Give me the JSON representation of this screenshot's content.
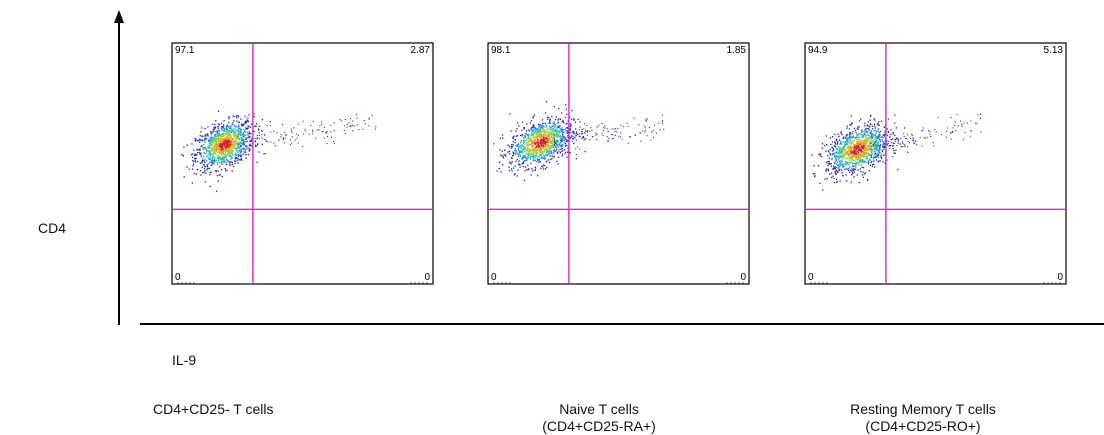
{
  "y_axis_label": "CD4",
  "x_axis_label": "IL-9",
  "chart_data": [
    {
      "type": "scatter",
      "xlabel": "IL-9",
      "ylabel": "CD4",
      "group_label": [
        "CD4+CD25- T cells"
      ],
      "quadrants": {
        "upper_left": "97.1",
        "upper_right": "2.87",
        "lower_left": "0",
        "lower_right": "0"
      },
      "gate_x": 0.31,
      "gate_y": 0.31,
      "population": {
        "center_x": 0.2,
        "center_y": 0.58,
        "spread_x": 0.055,
        "spread_y": 0.045,
        "tail_end_x": 0.78,
        "tail_end_y": 0.68
      }
    },
    {
      "type": "scatter",
      "xlabel": "IL-9",
      "ylabel": "CD4",
      "group_label": [
        "Naive T cells",
        "(CD4+CD25-RA+)"
      ],
      "quadrants": {
        "upper_left": "98.1",
        "upper_right": "1.85",
        "lower_left": "0",
        "lower_right": "0"
      },
      "gate_x": 0.31,
      "gate_y": 0.31,
      "population": {
        "center_x": 0.2,
        "center_y": 0.59,
        "spread_x": 0.06,
        "spread_y": 0.045,
        "tail_end_x": 0.68,
        "tail_end_y": 0.66
      }
    },
    {
      "type": "scatter",
      "xlabel": "IL-9",
      "ylabel": "CD4",
      "group_label": [
        "Resting Memory T cells",
        "(CD4+CD25-RO+)"
      ],
      "quadrants": {
        "upper_left": "94.9",
        "upper_right": "5.13",
        "lower_left": "0",
        "lower_right": "0"
      },
      "gate_x": 0.31,
      "gate_y": 0.31,
      "population": {
        "center_x": 0.2,
        "center_y": 0.56,
        "spread_x": 0.06,
        "spread_y": 0.045,
        "tail_end_x": 0.68,
        "tail_end_y": 0.68
      }
    }
  ]
}
